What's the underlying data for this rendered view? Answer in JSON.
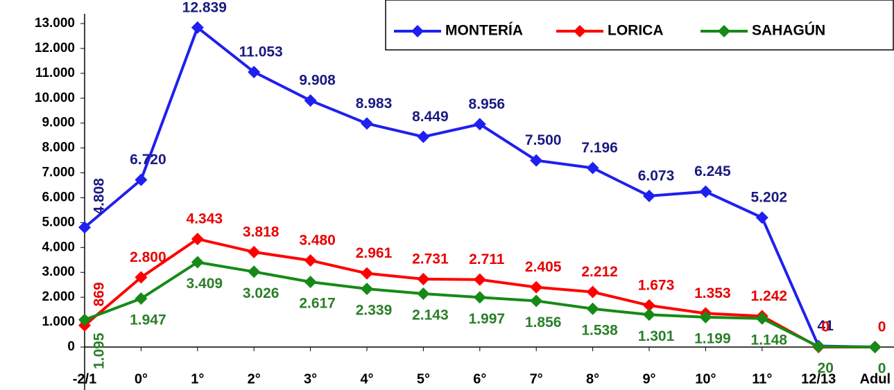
{
  "chart_data": {
    "type": "line",
    "categories": [
      "-2/1",
      "0°",
      "1°",
      "2°",
      "3°",
      "4°",
      "5°",
      "6°",
      "7°",
      "8°",
      "9°",
      "10°",
      "11°",
      "12/13",
      "Adul"
    ],
    "ylim": [
      0,
      13000
    ],
    "yticks": [
      0,
      {
        "value": 1000,
        "label": "1.000"
      },
      {
        "value": 2000,
        "label": "2.000"
      },
      {
        "value": 3000,
        "label": "3.000"
      },
      {
        "value": 4000,
        "label": "4.000"
      },
      {
        "value": 5000,
        "label": "5.000"
      },
      {
        "value": 6000,
        "label": "6.000"
      },
      {
        "value": 7000,
        "label": "7.000"
      },
      {
        "value": 8000,
        "label": "8.000"
      },
      {
        "value": 9000,
        "label": "9.000"
      },
      {
        "value": 10000,
        "label": "10.000"
      },
      {
        "value": 11000,
        "label": "11.000"
      },
      {
        "value": 12000,
        "label": "12.000"
      },
      {
        "value": 13000,
        "label": "13.000"
      }
    ],
    "legend": "top-right",
    "series": [
      {
        "name": "MONTERÍA",
        "color": "#1f1ff0",
        "label_color": "#1a1a80",
        "values": [
          4808,
          6720,
          12839,
          11053,
          9908,
          8983,
          8449,
          8956,
          7500,
          7196,
          6073,
          6245,
          5202,
          41,
          0
        ],
        "value_labels": [
          "4.808",
          "6.720",
          "12.839",
          "11.053",
          "9.908",
          "8.983",
          "8.449",
          "8.956",
          "7.500",
          "7.196",
          "6.073",
          "6.245",
          "5.202",
          "41",
          null
        ]
      },
      {
        "name": "LORICA",
        "color": "#ff0000",
        "label_color": "#e80000",
        "values": [
          869,
          2800,
          4343,
          3818,
          3480,
          2961,
          2731,
          2711,
          2405,
          2212,
          1673,
          1353,
          1242,
          0,
          0
        ],
        "value_labels": [
          "869",
          "2.800",
          "4.343",
          "3.818",
          "3.480",
          "2.961",
          "2.731",
          "2.711",
          "2.405",
          "2.212",
          "1.673",
          "1.353",
          "1.242",
          "0",
          "0"
        ]
      },
      {
        "name": "SAHAGÚN",
        "color": "#168a16",
        "label_color": "#2a7f2a",
        "values": [
          1095,
          1947,
          3409,
          3026,
          2617,
          2339,
          2143,
          1997,
          1856,
          1538,
          1301,
          1199,
          1148,
          20,
          0
        ],
        "value_labels": [
          "1.095",
          "1.947",
          "3.409",
          "3.026",
          "2.617",
          "2.339",
          "2.143",
          "1.997",
          "1.856",
          "1.538",
          "1.301",
          "1.199",
          "1.148",
          "20",
          "0"
        ]
      }
    ]
  }
}
